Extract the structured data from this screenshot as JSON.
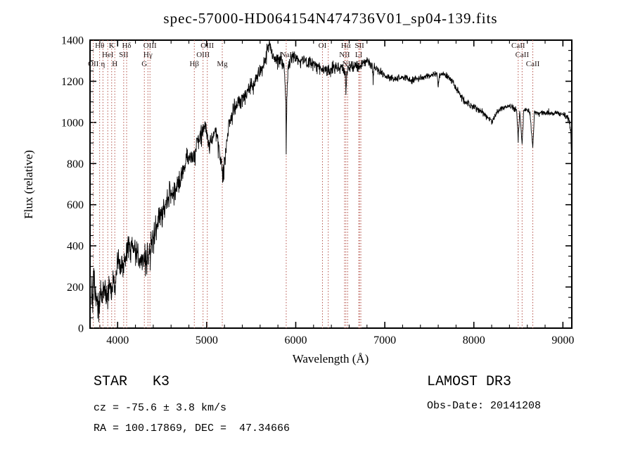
{
  "chart_data": {
    "type": "line",
    "title": "spec-57000-HD064154N474736V01_sp04-139.fits",
    "xlabel": "Wavelength (Å)",
    "ylabel": "Flux (relative)",
    "xlim": [
      3690,
      9100
    ],
    "ylim": [
      0,
      1400
    ],
    "xticks": [
      4000,
      5000,
      6000,
      7000,
      8000,
      9000
    ],
    "yticks": [
      0,
      200,
      400,
      600,
      800,
      1000,
      1200,
      1400
    ],
    "x_minor_step": 200,
    "y_minor_step": 50,
    "grid": false,
    "legend": "none",
    "colors": {
      "spectrum": "#000000",
      "line_marker": "#b5544b",
      "frame": "#000000",
      "label": "#221414",
      "background": "#ffffff"
    },
    "spectrum_range": [
      3706,
      9097
    ],
    "spectral_lines": [
      {
        "label": "OII",
        "wavelength": 3727,
        "row": 3
      },
      {
        "label": "Hθ",
        "wavelength": 3798,
        "row": 1
      },
      {
        "label": "η",
        "wavelength": 3835,
        "row": 3
      },
      {
        "label": "HeI",
        "wavelength": 3889,
        "row": 2
      },
      {
        "label": "K",
        "wavelength": 3933,
        "row": 1
      },
      {
        "label": "H",
        "wavelength": 3968,
        "row": 3
      },
      {
        "label": "SII",
        "wavelength": 4068,
        "row": 2
      },
      {
        "label": "Hδ",
        "wavelength": 4101,
        "row": 1
      },
      {
        "label": "G",
        "wavelength": 4300,
        "row": 3
      },
      {
        "label": "Hγ",
        "wavelength": 4340,
        "row": 2
      },
      {
        "label": "OIII",
        "wavelength": 4363,
        "row": 1
      },
      {
        "label": "Hβ",
        "wavelength": 4861,
        "row": 3
      },
      {
        "label": "OIII",
        "wavelength": 4959,
        "row": 2
      },
      {
        "label": "OIII",
        "wavelength": 5007,
        "row": 1
      },
      {
        "label": "Mg",
        "wavelength": 5175,
        "row": 3
      },
      {
        "label": "NaI",
        "wavelength": 5893,
        "row": 2
      },
      {
        "label": "OI",
        "wavelength": 6300,
        "row": 1
      },
      {
        "label": "",
        "wavelength": 6365,
        "row": 0
      },
      {
        "label": "NII",
        "wavelength": 6548,
        "row": 2
      },
      {
        "label": "Hα",
        "wavelength": 6563,
        "row": 1
      },
      {
        "label": "NII",
        "wavelength": 6583,
        "row": 3
      },
      {
        "label": "LI",
        "wavelength": 6708,
        "row": 2
      },
      {
        "label": "SII",
        "wavelength": 6716,
        "row": 1
      },
      {
        "label": "SII",
        "wavelength": 6731,
        "row": 3
      },
      {
        "label": "CaII",
        "wavelength": 8498,
        "row": 1
      },
      {
        "label": "CaII",
        "wavelength": 8542,
        "row": 2
      },
      {
        "label": "CaII",
        "wavelength": 8662,
        "row": 3
      }
    ],
    "envelope": [
      [
        3706,
        110
      ],
      [
        3712,
        235
      ],
      [
        3716,
        120
      ],
      [
        3722,
        95
      ],
      [
        3728,
        205
      ],
      [
        3736,
        265
      ],
      [
        3742,
        150
      ],
      [
        3750,
        215
      ],
      [
        3758,
        135
      ],
      [
        3766,
        180
      ],
      [
        3774,
        120
      ],
      [
        3786,
        150
      ],
      [
        3798,
        130
      ],
      [
        3810,
        180
      ],
      [
        3822,
        150
      ],
      [
        3835,
        170
      ],
      [
        3848,
        205
      ],
      [
        3862,
        160
      ],
      [
        3876,
        195
      ],
      [
        3889,
        175
      ],
      [
        3902,
        215
      ],
      [
        3916,
        235
      ],
      [
        3933,
        165
      ],
      [
        3948,
        240
      ],
      [
        3968,
        195
      ],
      [
        3988,
        265
      ],
      [
        4005,
        295
      ],
      [
        4025,
        275
      ],
      [
        4045,
        325
      ],
      [
        4068,
        295
      ],
      [
        4088,
        355
      ],
      [
        4105,
        385
      ],
      [
        4125,
        415
      ],
      [
        4145,
        395
      ],
      [
        4165,
        410
      ],
      [
        4190,
        385
      ],
      [
        4215,
        360
      ],
      [
        4240,
        345
      ],
      [
        4265,
        340
      ],
      [
        4290,
        335
      ],
      [
        4315,
        360
      ],
      [
        4340,
        330
      ],
      [
        4365,
        385
      ],
      [
        4395,
        445
      ],
      [
        4425,
        480
      ],
      [
        4455,
        520
      ],
      [
        4485,
        555
      ],
      [
        4515,
        585
      ],
      [
        4545,
        610
      ],
      [
        4575,
        635
      ],
      [
        4605,
        650
      ],
      [
        4635,
        665
      ],
      [
        4665,
        685
      ],
      [
        4695,
        715
      ],
      [
        4725,
        755
      ],
      [
        4755,
        795
      ],
      [
        4785,
        825
      ],
      [
        4815,
        845
      ],
      [
        4840,
        855
      ],
      [
        4861,
        820
      ],
      [
        4885,
        895
      ],
      [
        4910,
        925
      ],
      [
        4935,
        955
      ],
      [
        4960,
        975
      ],
      [
        4980,
        1000
      ],
      [
        5005,
        945
      ],
      [
        5030,
        880
      ],
      [
        5055,
        915
      ],
      [
        5080,
        950
      ],
      [
        5105,
        945
      ],
      [
        5130,
        895
      ],
      [
        5155,
        820
      ],
      [
        5180,
        745
      ],
      [
        5205,
        810
      ],
      [
        5230,
        930
      ],
      [
        5255,
        1000
      ],
      [
        5280,
        1040
      ],
      [
        5310,
        1070
      ],
      [
        5340,
        1085
      ],
      [
        5370,
        1100
      ],
      [
        5400,
        1115
      ],
      [
        5430,
        1130
      ],
      [
        5460,
        1145
      ],
      [
        5490,
        1165
      ],
      [
        5520,
        1185
      ],
      [
        5550,
        1205
      ],
      [
        5580,
        1230
      ],
      [
        5610,
        1250
      ],
      [
        5640,
        1285
      ],
      [
        5670,
        1330
      ],
      [
        5695,
        1385
      ],
      [
        5715,
        1370
      ],
      [
        5735,
        1330
      ],
      [
        5755,
        1305
      ],
      [
        5775,
        1310
      ],
      [
        5795,
        1300
      ],
      [
        5815,
        1295
      ],
      [
        5835,
        1300
      ],
      [
        5855,
        1285
      ],
      [
        5875,
        1240
      ],
      [
        5888,
        1120
      ],
      [
        5893,
        845
      ],
      [
        5900,
        1110
      ],
      [
        5912,
        1255
      ],
      [
        5930,
        1290
      ],
      [
        5950,
        1300
      ],
      [
        5975,
        1310
      ],
      [
        6000,
        1320
      ],
      [
        6030,
        1305
      ],
      [
        6060,
        1310
      ],
      [
        6090,
        1300
      ],
      [
        6120,
        1290
      ],
      [
        6150,
        1285
      ],
      [
        6180,
        1290
      ],
      [
        6210,
        1280
      ],
      [
        6240,
        1275
      ],
      [
        6270,
        1270
      ],
      [
        6300,
        1255
      ],
      [
        6330,
        1270
      ],
      [
        6360,
        1255
      ],
      [
        6390,
        1250
      ],
      [
        6420,
        1260
      ],
      [
        6450,
        1270
      ],
      [
        6480,
        1260
      ],
      [
        6510,
        1270
      ],
      [
        6540,
        1255
      ],
      [
        6557,
        1240
      ],
      [
        6563,
        1150
      ],
      [
        6572,
        1240
      ],
      [
        6590,
        1265
      ],
      [
        6620,
        1280
      ],
      [
        6650,
        1270
      ],
      [
        6680,
        1280
      ],
      [
        6710,
        1270
      ],
      [
        6740,
        1280
      ],
      [
        6770,
        1295
      ],
      [
        6800,
        1300
      ],
      [
        6830,
        1290
      ],
      [
        6860,
        1280
      ],
      [
        6869,
        1200
      ],
      [
        6880,
        1275
      ],
      [
        6910,
        1260
      ],
      [
        6940,
        1250
      ],
      [
        6970,
        1240
      ],
      [
        7000,
        1230
      ],
      [
        7050,
        1220
      ],
      [
        7100,
        1210
      ],
      [
        7150,
        1215
      ],
      [
        7200,
        1220
      ],
      [
        7250,
        1212
      ],
      [
        7300,
        1205
      ],
      [
        7350,
        1210
      ],
      [
        7400,
        1216
      ],
      [
        7450,
        1222
      ],
      [
        7500,
        1228
      ],
      [
        7550,
        1232
      ],
      [
        7590,
        1235
      ],
      [
        7600,
        1170
      ],
      [
        7612,
        1230
      ],
      [
        7650,
        1232
      ],
      [
        7700,
        1225
      ],
      [
        7750,
        1205
      ],
      [
        7800,
        1168
      ],
      [
        7850,
        1128
      ],
      [
        7900,
        1100
      ],
      [
        7950,
        1090
      ],
      [
        8000,
        1078
      ],
      [
        8050,
        1058
      ],
      [
        8100,
        1048
      ],
      [
        8150,
        1028
      ],
      [
        8200,
        998
      ],
      [
        8250,
        1045
      ],
      [
        8300,
        1068
      ],
      [
        8350,
        1075
      ],
      [
        8400,
        1078
      ],
      [
        8450,
        1068
      ],
      [
        8480,
        1060
      ],
      [
        8498,
        915
      ],
      [
        8515,
        1058
      ],
      [
        8542,
        895
      ],
      [
        8560,
        1055
      ],
      [
        8600,
        1058
      ],
      [
        8630,
        1048
      ],
      [
        8662,
        868
      ],
      [
        8680,
        1045
      ],
      [
        8720,
        1042
      ],
      [
        8760,
        1048
      ],
      [
        8800,
        1042
      ],
      [
        8840,
        1048
      ],
      [
        8880,
        1042
      ],
      [
        8920,
        1048
      ],
      [
        8960,
        1042
      ],
      [
        9000,
        1038
      ],
      [
        9040,
        1028
      ],
      [
        9070,
        1005
      ],
      [
        9088,
        965
      ],
      [
        9097,
        835
      ]
    ],
    "noise_profile": [
      [
        3706,
        60
      ],
      [
        3900,
        52
      ],
      [
        4100,
        48
      ],
      [
        4400,
        46
      ],
      [
        4700,
        42
      ],
      [
        5000,
        38
      ],
      [
        5300,
        34
      ],
      [
        5600,
        30
      ],
      [
        5900,
        26
      ],
      [
        6200,
        24
      ],
      [
        6500,
        22
      ],
      [
        6800,
        18
      ],
      [
        7100,
        14
      ],
      [
        7400,
        12
      ],
      [
        7700,
        12
      ],
      [
        8000,
        12
      ],
      [
        8300,
        11
      ],
      [
        8600,
        10
      ],
      [
        9000,
        11
      ],
      [
        9097,
        14
      ]
    ]
  },
  "annotations": {
    "object_type": "STAR   K3",
    "cz": "cz = -75.6 ± 3.8 km/s",
    "coords": "RA = 100.17869, DEC =  47.34666",
    "survey": "LAMOST DR3",
    "obs_date": "Obs-Date: 20141208"
  }
}
